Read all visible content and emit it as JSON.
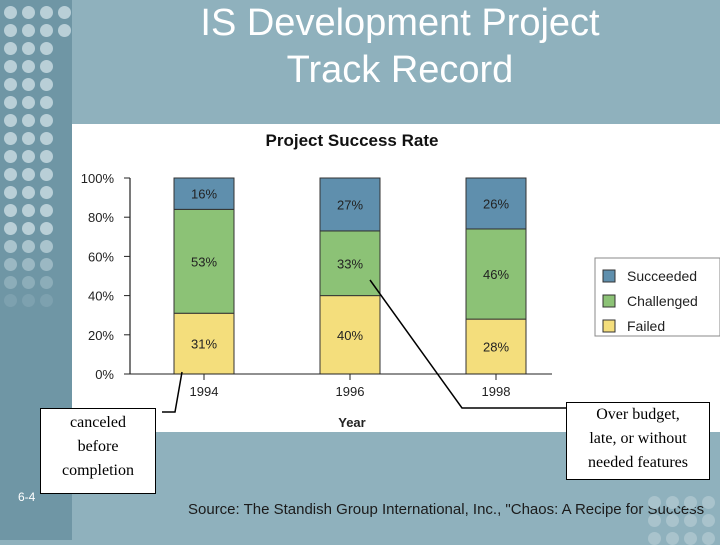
{
  "slide": {
    "title_line1": "IS Development Project",
    "title_line2": "Track Record",
    "slide_number": "6-4",
    "source": "Source: The Standish Group International, Inc., \"Chaos: A Recipe for Success\""
  },
  "callouts": {
    "left": [
      "canceled",
      "before",
      "completion"
    ],
    "right": [
      "Over budget,",
      "late, or without",
      "needed features"
    ]
  },
  "colors": {
    "succeeded": "#5f8fad",
    "challenged": "#8cc276",
    "failed": "#f4de7c"
  },
  "chart_data": {
    "type": "stacked-bar",
    "title": "Project Success Rate",
    "xlabel": "Year",
    "ylabel": "",
    "ylim": [
      0,
      100
    ],
    "yticks": [
      "0%",
      "20%",
      "40%",
      "60%",
      "80%",
      "100%"
    ],
    "categories": [
      "1994",
      "1996",
      "1998"
    ],
    "series": [
      {
        "name": "Failed",
        "values": [
          31,
          40,
          28
        ],
        "labels": [
          "31%",
          "40%",
          "28%"
        ]
      },
      {
        "name": "Challenged",
        "values": [
          53,
          33,
          46
        ],
        "labels": [
          "53%",
          "33%",
          "46%"
        ]
      },
      {
        "name": "Succeeded",
        "values": [
          16,
          27,
          26
        ],
        "labels": [
          "16%",
          "27%",
          "26%"
        ]
      }
    ],
    "legend": [
      "Succeeded",
      "Challenged",
      "Failed"
    ],
    "legend_position": "right"
  }
}
